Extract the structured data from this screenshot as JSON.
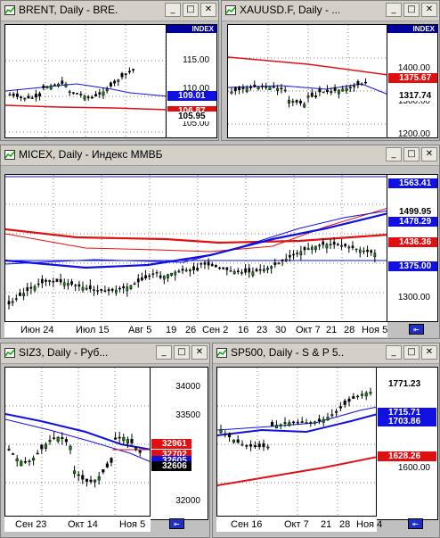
{
  "windows": {
    "brent": {
      "title": "BRENT, Daily - BRE...",
      "index_label": "INDEX",
      "price_labels": [
        "115.00",
        "110.00",
        "105.00"
      ],
      "tags": [
        {
          "text": "109.01",
          "bg": "#1010e0",
          "fg": "#ffffff"
        },
        {
          "text": "106.87",
          "bg": "#e01010",
          "fg": "#ffffff"
        },
        {
          "text": "105.95",
          "bg": "#ffffff",
          "fg": "#000000"
        }
      ]
    },
    "xau": {
      "title": "XAUUSD.F, Daily - ...",
      "index_label": "INDEX",
      "price_labels": [
        "1400.00",
        "1300.00",
        "1200.00"
      ],
      "tags": [
        {
          "text": "1375.67",
          "bg": "#e01010",
          "fg": "#ffffff"
        },
        {
          "text": "1317.74",
          "bg": "#ffffff",
          "fg": "#000000"
        }
      ]
    },
    "micex": {
      "title": "MICEX, Daily - Индекс ММВБ",
      "price_labels": [
        "1300.00"
      ],
      "tags": [
        {
          "text": "1563.41",
          "bg": "#1010e0",
          "fg": "#ffffff"
        },
        {
          "text": "1499.95",
          "bg": "#ffffff",
          "fg": "#000000"
        },
        {
          "text": "1478.29",
          "bg": "#1010e0",
          "fg": "#ffffff"
        },
        {
          "text": "1436.36",
          "bg": "#e01010",
          "fg": "#ffffff"
        },
        {
          "text": "1375.00",
          "bg": "#1010e0",
          "fg": "#ffffff"
        }
      ],
      "x_labels": [
        "Июн 24",
        "Июл 15",
        "Авг 5",
        "19",
        "26",
        "Сен 2",
        "16",
        "23",
        "30",
        "Окт 7",
        "21",
        "28",
        "Ноя 5"
      ]
    },
    "siz3": {
      "title": "SIZ3, Daily - Руб...",
      "price_labels": [
        "34000",
        "33500",
        "32000"
      ],
      "tags": [
        {
          "text": "32961",
          "bg": "#e01010",
          "fg": "#ffffff"
        },
        {
          "text": "32702",
          "bg": "#e01010",
          "fg": "#ffffff"
        },
        {
          "text": "32605",
          "bg": "#1010e0",
          "fg": "#ffffff"
        },
        {
          "text": "32606",
          "bg": "#000000",
          "fg": "#ffffff"
        }
      ],
      "x_labels": [
        "Сен 23",
        "Окт 14",
        "Ноя 5"
      ]
    },
    "sp500": {
      "title": "SP500, Daily - S & P 5...",
      "price_labels": [
        "1600.00"
      ],
      "tags": [
        {
          "text": "1771.23",
          "bg": "#ffffff",
          "fg": "#000000"
        },
        {
          "text": "1715.71",
          "bg": "#1010e0",
          "fg": "#ffffff"
        },
        {
          "text": "1703.86",
          "bg": "#1010e0",
          "fg": "#ffffff"
        },
        {
          "text": "1628.26",
          "bg": "#e01010",
          "fg": "#ffffff"
        }
      ],
      "x_labels": [
        "Сен 16",
        "Окт 7",
        "21",
        "28",
        "Ноя 4"
      ]
    }
  },
  "buttons": {
    "minimize": "_",
    "restore": "□",
    "close": "✕"
  },
  "colors": {
    "bull": "#0a8a0a",
    "bear": "#000000",
    "ma_red": "#e01010",
    "ma_blue": "#1010e0"
  }
}
